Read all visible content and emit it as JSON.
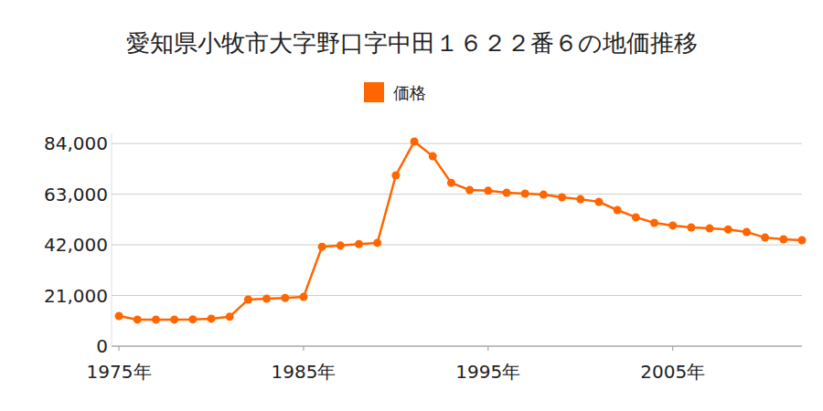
{
  "chart_data": {
    "type": "line",
    "title": "愛知県小牧市大字野口字中田１６２２番６の地価推移",
    "x": [
      1975,
      1976,
      1977,
      1978,
      1979,
      1980,
      1981,
      1982,
      1983,
      1984,
      1985,
      1986,
      1987,
      1988,
      1989,
      1990,
      1991,
      1992,
      1993,
      1994,
      1995,
      1996,
      1997,
      1998,
      1999,
      2000,
      2001,
      2002,
      2003,
      2004,
      2005,
      2006,
      2007,
      2008,
      2009,
      2010,
      2011,
      2012
    ],
    "series": [
      {
        "name": "価格",
        "color": "#ff6600",
        "marker": "circle",
        "values": [
          12500,
          11000,
          11000,
          11000,
          11100,
          11400,
          12200,
          19300,
          19700,
          20000,
          20400,
          41200,
          41700,
          42300,
          42800,
          70800,
          84800,
          78700,
          67700,
          64700,
          64400,
          63600,
          63200,
          62800,
          61700,
          60900,
          59800,
          56400,
          53400,
          51100,
          50000,
          49200,
          48800,
          48400,
          47300,
          45000,
          44300,
          43900
        ]
      }
    ],
    "xlim": [
      1974.6,
      2012
    ],
    "xticks": [
      {
        "value": 1975,
        "label": "1975年"
      },
      {
        "value": 1985,
        "label": "1985年"
      },
      {
        "value": 1995,
        "label": "1995年"
      },
      {
        "value": 2005,
        "label": "2005年"
      }
    ],
    "ylim": [
      0,
      88200
    ],
    "yticks": [
      0,
      {
        "value": 21000,
        "label": "21,000"
      },
      {
        "value": 42000,
        "label": "42,000"
      },
      {
        "value": 63000,
        "label": "63,000"
      },
      {
        "value": 84000,
        "label": "84,000"
      }
    ],
    "grid": true,
    "legend": "top"
  }
}
